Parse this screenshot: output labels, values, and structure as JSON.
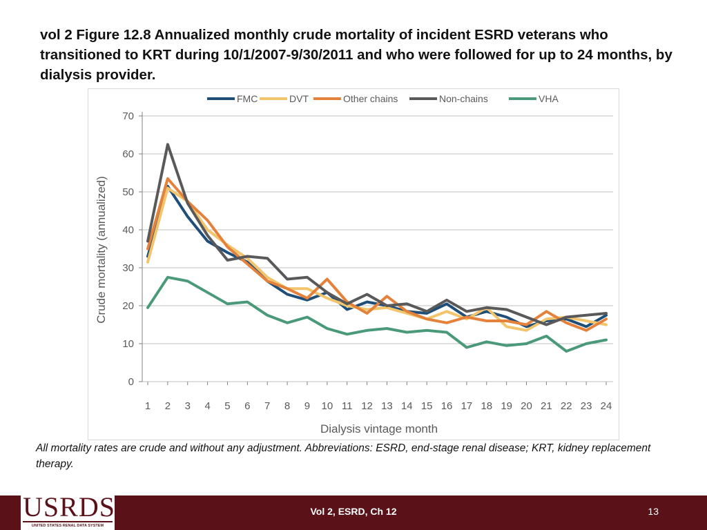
{
  "slide": {
    "title": "vol 2 Figure 12.8  Annualized monthly crude mortality of incident ESRD veterans who transitioned to KRT during 10/1/2007-9/30/2011 and who were followed for up to 24 months, by dialysis provider.",
    "footnote": "All mortality rates are crude and without any adjustment. Abbreviations: ESRD, end-stage renal disease; KRT, kidney replacement therapy.",
    "footer_label": "Vol 2, ESRD, Ch 12",
    "page_number": "13",
    "logo_text": "USRDS",
    "logo_subtext": "UNITED STATES RENAL DATA SYSTEM"
  },
  "colors": {
    "footer_bg": "#5a1218",
    "grid": "#bfbfbf",
    "axis_text": "#595959"
  },
  "chart_data": {
    "type": "line",
    "title": "",
    "xlabel": "Dialysis vintage month",
    "ylabel": "Crude mortality (annualized)",
    "ylim": [
      0,
      70
    ],
    "yticks": [
      "0",
      "10",
      "20",
      "30",
      "40",
      "50",
      "60",
      "70"
    ],
    "categories": [
      "1",
      "2",
      "3",
      "4",
      "5",
      "6",
      "7",
      "8",
      "9",
      "10",
      "11",
      "12",
      "13",
      "14",
      "15",
      "16",
      "17",
      "18",
      "19",
      "20",
      "21",
      "22",
      "23",
      "24"
    ],
    "legend_position": "top",
    "grid": true,
    "series": [
      {
        "name": "FMC",
        "color": "#1f4e79",
        "values": [
          33,
          51.5,
          43.5,
          37,
          34,
          31.5,
          26.5,
          23,
          21.5,
          23.5,
          19,
          21,
          20,
          18.5,
          18,
          20.5,
          17,
          18.5,
          17,
          14.5,
          16,
          16.5,
          14.5,
          17.5
        ]
      },
      {
        "name": "DVT",
        "color": "#f2c46c",
        "values": [
          31.5,
          51,
          47.5,
          40,
          36,
          32.5,
          27.5,
          24.5,
          24.5,
          22,
          20,
          19,
          19.5,
          18,
          16.5,
          18.5,
          16.5,
          19.5,
          14.5,
          13.5,
          16.5,
          17,
          16,
          15
        ]
      },
      {
        "name": "Other chains",
        "color": "#e4823b",
        "values": [
          35,
          53.5,
          47.5,
          42.5,
          35.5,
          31,
          26.5,
          24.5,
          22,
          27,
          21,
          18,
          22.5,
          18.5,
          16.5,
          15.5,
          17,
          16,
          16,
          15,
          18.5,
          15.5,
          13.5,
          16.5
        ]
      },
      {
        "name": "Non-chains",
        "color": "#595959",
        "values": [
          37,
          62.5,
          47,
          38.5,
          32,
          33,
          32.5,
          27,
          27.5,
          23.5,
          20.5,
          23,
          20,
          20.5,
          18.5,
          21.5,
          18.5,
          19.5,
          19,
          17,
          15,
          17,
          17.5,
          18
        ]
      },
      {
        "name": "VHA",
        "color": "#4a9a7a",
        "values": [
          19.5,
          27.5,
          26.5,
          23.5,
          20.5,
          21,
          17.5,
          15.5,
          17,
          14,
          12.5,
          13.5,
          14,
          13,
          13.5,
          13,
          9,
          10.5,
          9.5,
          10,
          12,
          8,
          10,
          11
        ]
      }
    ]
  }
}
